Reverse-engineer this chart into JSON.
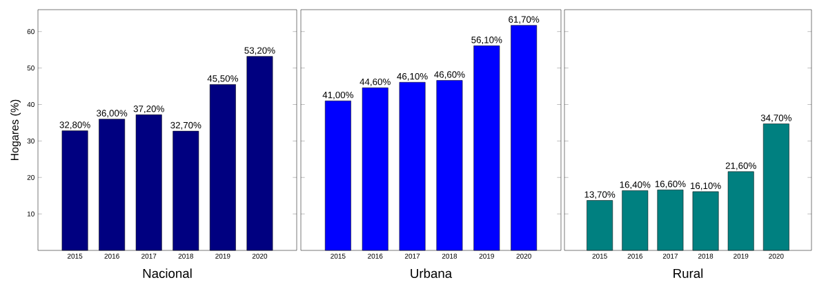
{
  "chart_data": [
    {
      "type": "bar",
      "xlabel": "Nacional",
      "ylabel": "Hogares (%)",
      "categories": [
        "2015",
        "2016",
        "2017",
        "2018",
        "2019",
        "2020"
      ],
      "values": [
        32.8,
        36.0,
        37.2,
        32.7,
        45.5,
        53.2
      ],
      "value_labels": [
        "32,80%",
        "36,00%",
        "37,20%",
        "32,70%",
        "45,50%",
        "53,20%"
      ],
      "color": "#000080",
      "ylim": [
        0,
        66
      ],
      "yticks": [
        10,
        20,
        30,
        40,
        50,
        60
      ]
    },
    {
      "type": "bar",
      "xlabel": "Urbana",
      "categories": [
        "2015",
        "2016",
        "2017",
        "2018",
        "2019",
        "2020"
      ],
      "values": [
        41.0,
        44.6,
        46.1,
        46.6,
        56.1,
        61.7
      ],
      "value_labels": [
        "41,00%",
        "44,60%",
        "46,10%",
        "46,60%",
        "56,10%",
        "61,70%"
      ],
      "color": "#0000ff",
      "ylim": [
        0,
        66
      ],
      "yticks": [
        10,
        20,
        30,
        40,
        50,
        60
      ],
      "tick_labels": "x"
    },
    {
      "type": "bar",
      "xlabel": "Rural",
      "categories": [
        "2015",
        "2016",
        "2017",
        "2018",
        "2019",
        "2020"
      ],
      "values": [
        13.7,
        16.4,
        16.6,
        16.1,
        21.6,
        34.7
      ],
      "value_labels": [
        "13,70%",
        "16,40%",
        "16,60%",
        "16,10%",
        "21,60%",
        "34,70%"
      ],
      "color": "#008080",
      "ylim": [
        0,
        66
      ],
      "yticks": [
        10,
        20,
        30,
        40,
        50,
        60
      ],
      "tick_labels": "x"
    }
  ]
}
